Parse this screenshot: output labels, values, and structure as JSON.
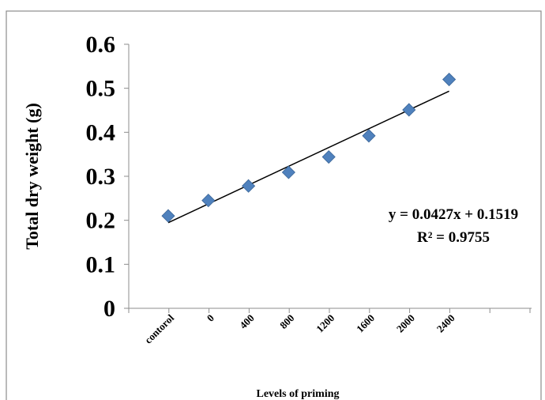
{
  "chart_data": {
    "type": "scatter",
    "xlabel": "Levels of priming",
    "ylabel": "Total dry weight (g)",
    "categories": [
      "contorol",
      "0",
      "400",
      "800",
      "1200",
      "1600",
      "2000",
      "2400"
    ],
    "values": [
      0.21,
      0.245,
      0.278,
      0.309,
      0.344,
      0.392,
      0.451,
      0.52
    ],
    "ylim": [
      0,
      0.6
    ],
    "yticks": [
      "0",
      "0.1",
      "0.2",
      "0.3",
      "0.4",
      "0.5",
      "0.6"
    ],
    "grid": false,
    "marker_color": "#4f81bd",
    "trendline": {
      "type": "linear",
      "slope": 0.0427,
      "intercept": 0.1519,
      "equation": "y = 0.0427x + 0.1519",
      "r_squared": "R² = 0.9755"
    }
  }
}
